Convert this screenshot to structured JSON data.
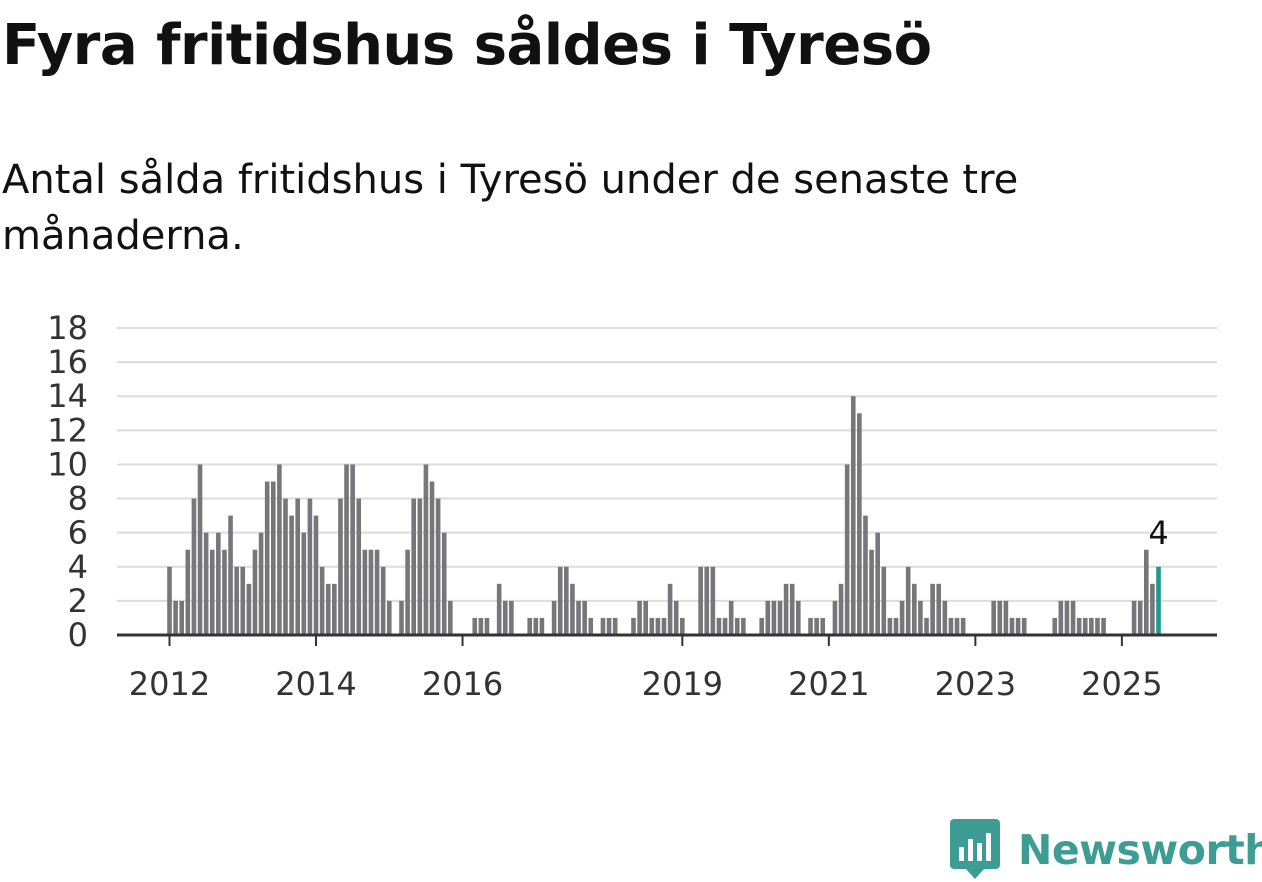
{
  "header": {
    "title": "Fyra fritidshus såldes i Tyresö",
    "subtitle": "Antal sålda fritidshus i Tyresö under de senaste tre månaderna."
  },
  "colors": {
    "bar": "#77767b",
    "highlight": "#1a9b8c",
    "grid": "#dcdcdc",
    "axis": "#333333",
    "brand": "#3d9c94"
  },
  "brand": {
    "name": "Newsworthy",
    "icon": "newsworthy-logo-icon"
  },
  "chart_data": {
    "type": "bar",
    "x_unit": "month",
    "start": "2012-01",
    "end": "2025-07",
    "values": [
      4,
      2,
      2,
      5,
      8,
      10,
      6,
      5,
      6,
      5,
      7,
      4,
      4,
      3,
      5,
      6,
      9,
      9,
      10,
      8,
      7,
      8,
      6,
      8,
      7,
      4,
      3,
      3,
      8,
      10,
      10,
      8,
      5,
      5,
      5,
      4,
      2,
      0,
      2,
      5,
      8,
      8,
      10,
      9,
      8,
      6,
      2,
      0,
      0,
      0,
      1,
      1,
      1,
      0,
      3,
      2,
      2,
      0,
      0,
      1,
      1,
      1,
      0,
      2,
      4,
      4,
      3,
      2,
      2,
      1,
      0,
      1,
      1,
      1,
      0,
      0,
      1,
      2,
      2,
      1,
      1,
      1,
      3,
      2,
      1,
      0,
      0,
      4,
      4,
      4,
      1,
      1,
      2,
      1,
      1,
      0,
      0,
      1,
      2,
      2,
      2,
      3,
      3,
      2,
      0,
      1,
      1,
      1,
      0,
      2,
      3,
      10,
      14,
      13,
      7,
      5,
      6,
      4,
      1,
      1,
      2,
      4,
      3,
      2,
      1,
      3,
      3,
      2,
      1,
      1,
      1,
      0,
      0,
      0,
      0,
      2,
      2,
      2,
      1,
      1,
      1,
      0,
      0,
      0,
      0,
      1,
      2,
      2,
      2,
      1,
      1,
      1,
      1,
      1,
      0,
      0,
      0,
      0,
      2,
      2,
      5,
      3,
      4
    ],
    "highlight_last": true,
    "last_label": "4",
    "ylim": [
      0,
      18
    ],
    "yticks": [
      0,
      2,
      4,
      6,
      8,
      10,
      12,
      14,
      16,
      18
    ],
    "xticks": [
      "2012",
      "2014",
      "2016",
      "2019",
      "2021",
      "2023",
      "2025"
    ],
    "xlabel": "",
    "ylabel": "",
    "grid": true,
    "legend": "none"
  }
}
